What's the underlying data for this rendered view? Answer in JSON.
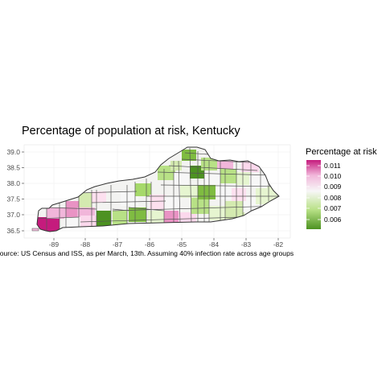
{
  "title": "Percentage of population at risk, Kentucky",
  "caption": "Source: US Census and ISS, as per March, 13th. Assuming 40% infection rate across age groups",
  "legend": {
    "title": "Percentage at risk",
    "ticks": [
      "0.011",
      "0.010",
      "0.009",
      "0.008",
      "0.007",
      "0.006"
    ],
    "colors": {
      "high": "#c51b7d",
      "mid_high": "#f1b6da",
      "mid": "#f7f7f7",
      "mid_low": "#b8e186",
      "low": "#4d9221"
    }
  },
  "axes": {
    "x_ticks": [
      "-89",
      "-88",
      "-87",
      "-86",
      "-85",
      "-84",
      "-83",
      "-82"
    ],
    "y_ticks": [
      "39.0",
      "38.5",
      "38.0",
      "37.5",
      "37.0",
      "36.5"
    ],
    "xlim": [
      -89.8,
      -81.8
    ],
    "ylim": [
      36.35,
      39.2
    ],
    "grid": true
  }
}
